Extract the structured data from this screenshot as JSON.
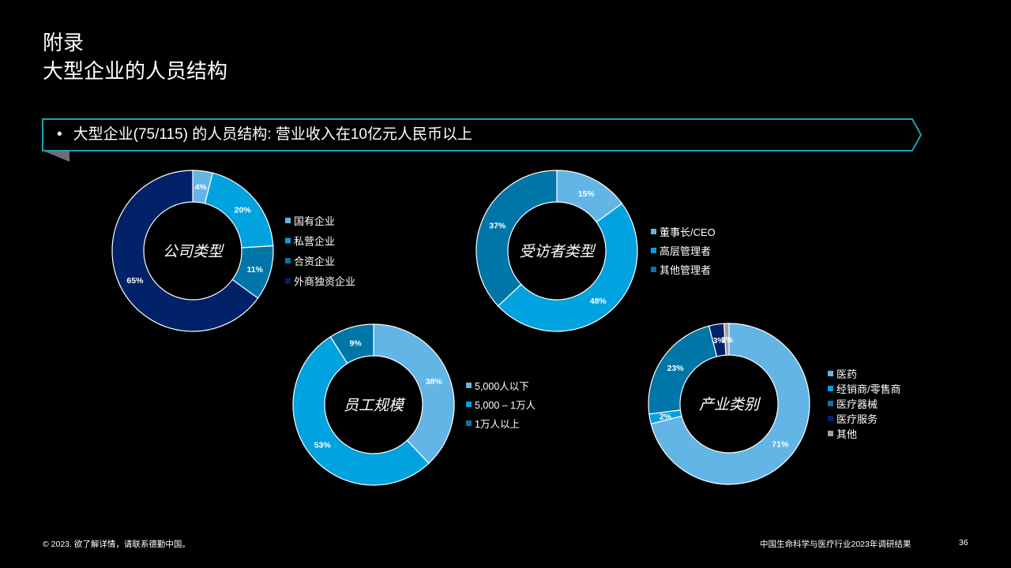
{
  "header": {
    "title_line1": "附录",
    "title_line2": "大型企业的人员结构"
  },
  "banner": {
    "bullet": "•",
    "text": "大型企业(75/115) 的人员结构: 营业收入在10亿元人民币以上"
  },
  "chart_data": [
    {
      "type": "donut",
      "title": "公司类型",
      "categories": [
        "国有企业",
        "私营企业",
        "合资企业",
        "外商独资企业"
      ],
      "values": [
        4,
        20,
        11,
        65
      ],
      "labels": [
        "4%",
        "20%",
        "11%",
        "65%"
      ],
      "colors": [
        "#62b5e5",
        "#00a3e0",
        "#0076a8",
        "#012169"
      ],
      "legend_position": "right"
    },
    {
      "type": "donut",
      "title": "受访者类型",
      "categories": [
        "董事长/CEO",
        "高层管理者",
        "其他管理者"
      ],
      "values": [
        15,
        48,
        37
      ],
      "labels": [
        "15%",
        "48%",
        "37%"
      ],
      "colors": [
        "#62b5e5",
        "#00a3e0",
        "#0076a8"
      ],
      "legend_position": "right"
    },
    {
      "type": "donut",
      "title": "员工规模",
      "categories": [
        "5,000人以下",
        "5,000 – 1万人",
        "1万人以上"
      ],
      "values": [
        38,
        53,
        9
      ],
      "labels": [
        "38%",
        "53%",
        "9%"
      ],
      "colors": [
        "#62b5e5",
        "#00a3e0",
        "#0076a8"
      ],
      "legend_position": "right"
    },
    {
      "type": "donut",
      "title": "产业类别",
      "categories": [
        "医药",
        "经销商/零售商",
        "医疗器械",
        "医疗服务",
        "其他"
      ],
      "values": [
        71,
        2,
        23,
        3,
        1
      ],
      "labels": [
        "71%",
        "2%",
        "23%",
        "3%",
        "1%"
      ],
      "colors": [
        "#62b5e5",
        "#00a3e0",
        "#0076a8",
        "#012169",
        "#a0a0a0"
      ],
      "legend_position": "right"
    }
  ],
  "footer": {
    "copyright": "© 2023. 欲了解详情，请联系德勤中国。",
    "report_title": "中国生命科学与医疗行业2023年调研结果",
    "page_number": "36"
  }
}
